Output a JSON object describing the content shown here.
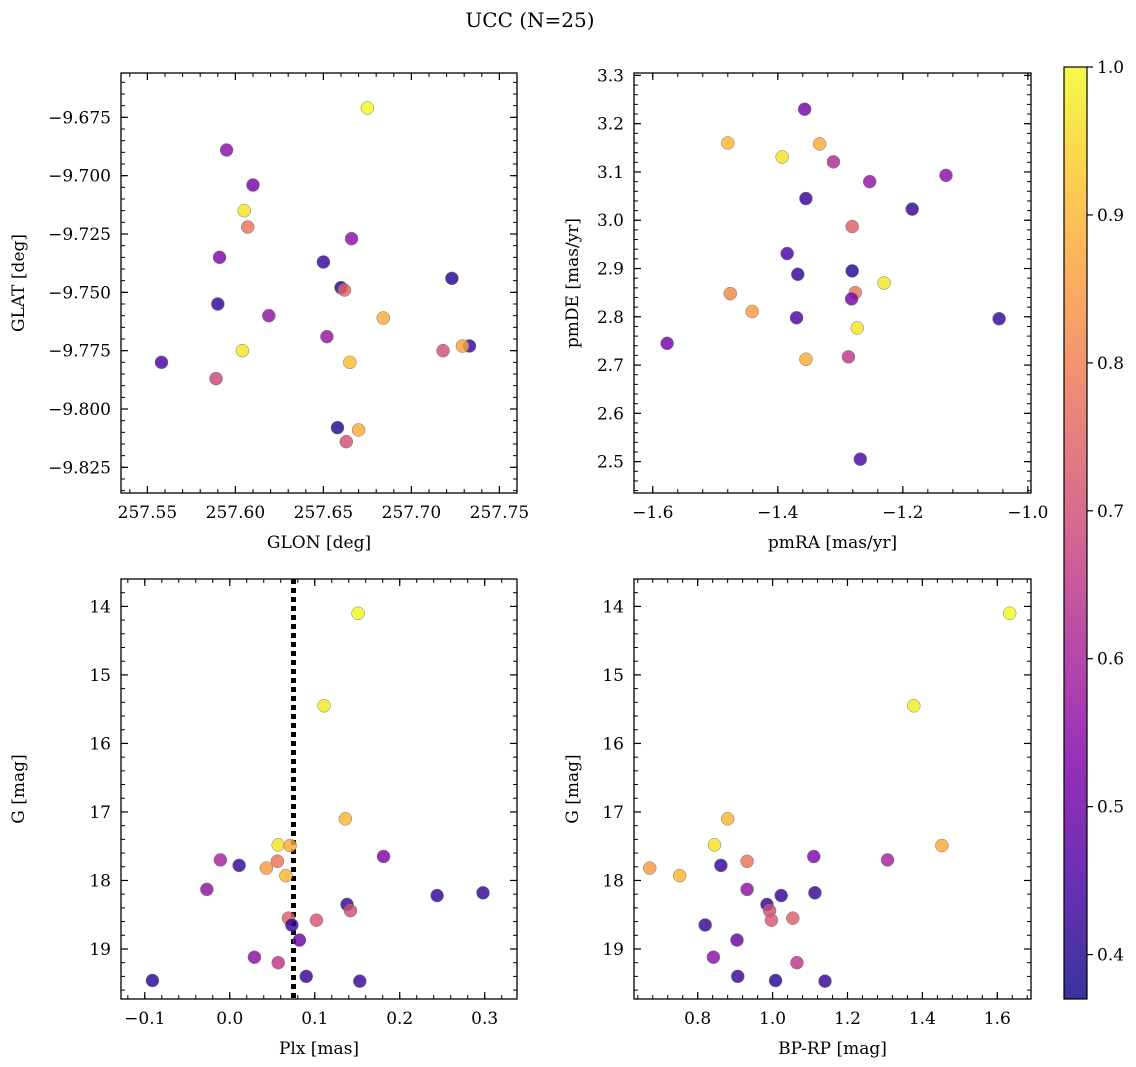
{
  "title": "UCC (N=25)",
  "colorbar": {
    "min": 0.37,
    "max": 1.0,
    "ticks": [
      0.4,
      0.5,
      0.6,
      0.7,
      0.8,
      0.9,
      1.0
    ],
    "tick_labels": [
      "0.4",
      "0.5",
      "0.6",
      "0.7",
      "0.8",
      "0.9",
      "1.0"
    ],
    "colormap": "plasma"
  },
  "chart_data": [
    {
      "type": "scatter",
      "id": "glon-glat",
      "xlabel": "GLON [deg]",
      "ylabel": "GLAT [deg]",
      "xlim": [
        257.535,
        257.76
      ],
      "ylim": [
        -9.836,
        -9.656
      ],
      "y_inverted": false,
      "xticks": [
        257.55,
        257.6,
        257.65,
        257.7,
        257.75
      ],
      "xtick_labels": [
        "257.55",
        "257.60",
        "257.65",
        "257.70",
        "257.75"
      ],
      "yticks": [
        -9.675,
        -9.7,
        -9.725,
        -9.75,
        -9.775,
        -9.8,
        -9.825
      ],
      "ytick_labels": [
        "−9.675",
        "−9.700",
        "−9.725",
        "−9.750",
        "−9.775",
        "−9.800",
        "−9.825"
      ],
      "points": [
        {
          "x": 257.675,
          "y": -9.671,
          "c": 1.0
        },
        {
          "x": 257.595,
          "y": -9.689,
          "c": 0.55
        },
        {
          "x": 257.61,
          "y": -9.704,
          "c": 0.52
        },
        {
          "x": 257.605,
          "y": -9.715,
          "c": 0.97
        },
        {
          "x": 257.607,
          "y": -9.722,
          "c": 0.78
        },
        {
          "x": 257.666,
          "y": -9.727,
          "c": 0.55
        },
        {
          "x": 257.591,
          "y": -9.735,
          "c": 0.53
        },
        {
          "x": 257.65,
          "y": -9.737,
          "c": 0.42
        },
        {
          "x": 257.723,
          "y": -9.744,
          "c": 0.4
        },
        {
          "x": 257.66,
          "y": -9.748,
          "c": 0.4
        },
        {
          "x": 257.662,
          "y": -9.749,
          "c": 0.75
        },
        {
          "x": 257.59,
          "y": -9.755,
          "c": 0.42
        },
        {
          "x": 257.619,
          "y": -9.76,
          "c": 0.56
        },
        {
          "x": 257.684,
          "y": -9.761,
          "c": 0.88
        },
        {
          "x": 257.652,
          "y": -9.769,
          "c": 0.57
        },
        {
          "x": 257.604,
          "y": -9.775,
          "c": 0.97
        },
        {
          "x": 257.733,
          "y": -9.773,
          "c": 0.42
        },
        {
          "x": 257.729,
          "y": -9.773,
          "c": 0.87
        },
        {
          "x": 257.718,
          "y": -9.775,
          "c": 0.7
        },
        {
          "x": 257.558,
          "y": -9.78,
          "c": 0.45
        },
        {
          "x": 257.665,
          "y": -9.78,
          "c": 0.91
        },
        {
          "x": 257.589,
          "y": -9.787,
          "c": 0.68
        },
        {
          "x": 257.658,
          "y": -9.808,
          "c": 0.4
        },
        {
          "x": 257.67,
          "y": -9.809,
          "c": 0.88
        },
        {
          "x": 257.663,
          "y": -9.814,
          "c": 0.7
        }
      ]
    },
    {
      "type": "scatter",
      "id": "pmra-pmde",
      "xlabel": "pmRA [mas/yr]",
      "ylabel": "pmDE [mas/yr]",
      "xlim": [
        -1.63,
        -0.995
      ],
      "ylim": [
        2.435,
        3.305
      ],
      "y_inverted": false,
      "xticks": [
        -1.6,
        -1.4,
        -1.2,
        -1.0
      ],
      "xtick_labels": [
        "−1.6",
        "−1.4",
        "−1.2",
        "−1.0"
      ],
      "yticks": [
        2.5,
        2.6,
        2.7,
        2.8,
        2.9,
        3.0,
        3.1,
        3.2,
        3.3
      ],
      "ytick_labels": [
        "2.5",
        "2.6",
        "2.7",
        "2.8",
        "2.9",
        "3.0",
        "3.1",
        "3.2",
        "3.3"
      ],
      "points": [
        {
          "x": -1.357,
          "y": 3.23,
          "c": 0.52
        },
        {
          "x": -1.48,
          "y": 3.16,
          "c": 0.9
        },
        {
          "x": -1.333,
          "y": 3.158,
          "c": 0.88
        },
        {
          "x": -1.393,
          "y": 3.131,
          "c": 0.97
        },
        {
          "x": -1.311,
          "y": 3.121,
          "c": 0.62
        },
        {
          "x": -1.131,
          "y": 3.093,
          "c": 0.55
        },
        {
          "x": -1.253,
          "y": 3.08,
          "c": 0.57
        },
        {
          "x": -1.355,
          "y": 3.045,
          "c": 0.42
        },
        {
          "x": -1.185,
          "y": 3.023,
          "c": 0.42
        },
        {
          "x": -1.281,
          "y": 2.987,
          "c": 0.74
        },
        {
          "x": -1.385,
          "y": 2.931,
          "c": 0.45
        },
        {
          "x": -1.281,
          "y": 2.895,
          "c": 0.4
        },
        {
          "x": -1.368,
          "y": 2.888,
          "c": 0.42
        },
        {
          "x": -1.23,
          "y": 2.87,
          "c": 0.97
        },
        {
          "x": -1.476,
          "y": 2.848,
          "c": 0.82
        },
        {
          "x": -1.276,
          "y": 2.85,
          "c": 0.78
        },
        {
          "x": -1.282,
          "y": 2.837,
          "c": 0.52
        },
        {
          "x": -1.441,
          "y": 2.811,
          "c": 0.85
        },
        {
          "x": -1.37,
          "y": 2.798,
          "c": 0.45
        },
        {
          "x": -1.046,
          "y": 2.796,
          "c": 0.42
        },
        {
          "x": -1.273,
          "y": 2.777,
          "c": 0.97
        },
        {
          "x": -1.577,
          "y": 2.745,
          "c": 0.52
        },
        {
          "x": -1.287,
          "y": 2.717,
          "c": 0.65
        },
        {
          "x": -1.355,
          "y": 2.712,
          "c": 0.88
        },
        {
          "x": -1.268,
          "y": 2.505,
          "c": 0.45
        }
      ]
    },
    {
      "type": "scatter",
      "id": "plx-g",
      "xlabel": "Plx [mas]",
      "ylabel": "G [mag]",
      "xlim": [
        -0.128,
        0.338
      ],
      "ylim": [
        13.6,
        19.73
      ],
      "y_inverted": true,
      "vline": {
        "x": 0.075,
        "style": "dotted"
      },
      "xticks": [
        -0.1,
        0.0,
        0.1,
        0.2,
        0.3
      ],
      "xtick_labels": [
        "−0.1",
        "0.0",
        "0.1",
        "0.2",
        "0.3"
      ],
      "yticks": [
        14,
        15,
        16,
        17,
        18,
        19
      ],
      "ytick_labels": [
        "14",
        "15",
        "16",
        "17",
        "18",
        "19"
      ],
      "points": [
        {
          "x": 0.151,
          "y": 14.1,
          "c": 1.0
        },
        {
          "x": 0.111,
          "y": 15.45,
          "c": 0.98
        },
        {
          "x": 0.136,
          "y": 17.1,
          "c": 0.9
        },
        {
          "x": 0.057,
          "y": 17.48,
          "c": 0.97
        },
        {
          "x": 0.071,
          "y": 17.49,
          "c": 0.88
        },
        {
          "x": 0.181,
          "y": 17.65,
          "c": 0.53
        },
        {
          "x": -0.011,
          "y": 17.7,
          "c": 0.6
        },
        {
          "x": 0.056,
          "y": 17.72,
          "c": 0.78
        },
        {
          "x": 0.011,
          "y": 17.78,
          "c": 0.42
        },
        {
          "x": 0.043,
          "y": 17.82,
          "c": 0.85
        },
        {
          "x": 0.066,
          "y": 17.93,
          "c": 0.9
        },
        {
          "x": -0.027,
          "y": 18.13,
          "c": 0.56
        },
        {
          "x": 0.298,
          "y": 18.18,
          "c": 0.42
        },
        {
          "x": 0.244,
          "y": 18.22,
          "c": 0.42
        },
        {
          "x": 0.138,
          "y": 18.35,
          "c": 0.42
        },
        {
          "x": 0.142,
          "y": 18.44,
          "c": 0.7
        },
        {
          "x": 0.069,
          "y": 18.55,
          "c": 0.74
        },
        {
          "x": 0.102,
          "y": 18.58,
          "c": 0.72
        },
        {
          "x": 0.073,
          "y": 18.65,
          "c": 0.42
        },
        {
          "x": 0.082,
          "y": 18.87,
          "c": 0.5
        },
        {
          "x": 0.029,
          "y": 19.12,
          "c": 0.55
        },
        {
          "x": 0.057,
          "y": 19.2,
          "c": 0.65
        },
        {
          "x": 0.09,
          "y": 19.4,
          "c": 0.42
        },
        {
          "x": -0.091,
          "y": 19.46,
          "c": 0.4
        },
        {
          "x": 0.153,
          "y": 19.47,
          "c": 0.42
        }
      ]
    },
    {
      "type": "scatter",
      "id": "bprp-g",
      "xlabel": "BP-RP [mag]",
      "ylabel": "G [mag]",
      "xlim": [
        0.63,
        1.69
      ],
      "ylim": [
        13.6,
        19.73
      ],
      "y_inverted": true,
      "xticks": [
        0.8,
        1.0,
        1.2,
        1.4,
        1.6
      ],
      "xtick_labels": [
        "0.8",
        "1.0",
        "1.2",
        "1.4",
        "1.6"
      ],
      "yticks": [
        14,
        15,
        16,
        17,
        18,
        19
      ],
      "ytick_labels": [
        "14",
        "15",
        "16",
        "17",
        "18",
        "19"
      ],
      "points": [
        {
          "x": 1.633,
          "y": 14.1,
          "c": 1.0
        },
        {
          "x": 1.377,
          "y": 15.45,
          "c": 0.98
        },
        {
          "x": 0.88,
          "y": 17.1,
          "c": 0.9
        },
        {
          "x": 0.845,
          "y": 17.48,
          "c": 0.97
        },
        {
          "x": 1.452,
          "y": 17.49,
          "c": 0.88
        },
        {
          "x": 1.11,
          "y": 17.65,
          "c": 0.53
        },
        {
          "x": 1.307,
          "y": 17.7,
          "c": 0.6
        },
        {
          "x": 0.932,
          "y": 17.72,
          "c": 0.78
        },
        {
          "x": 0.862,
          "y": 17.78,
          "c": 0.42
        },
        {
          "x": 0.672,
          "y": 17.82,
          "c": 0.85
        },
        {
          "x": 0.752,
          "y": 17.93,
          "c": 0.9
        },
        {
          "x": 0.932,
          "y": 18.13,
          "c": 0.56
        },
        {
          "x": 1.113,
          "y": 18.18,
          "c": 0.42
        },
        {
          "x": 1.023,
          "y": 18.22,
          "c": 0.42
        },
        {
          "x": 0.985,
          "y": 18.35,
          "c": 0.42
        },
        {
          "x": 0.992,
          "y": 18.44,
          "c": 0.7
        },
        {
          "x": 1.054,
          "y": 18.55,
          "c": 0.74
        },
        {
          "x": 0.997,
          "y": 18.58,
          "c": 0.72
        },
        {
          "x": 0.82,
          "y": 18.65,
          "c": 0.42
        },
        {
          "x": 0.905,
          "y": 18.87,
          "c": 0.5
        },
        {
          "x": 0.842,
          "y": 19.12,
          "c": 0.55
        },
        {
          "x": 1.065,
          "y": 19.2,
          "c": 0.65
        },
        {
          "x": 0.907,
          "y": 19.4,
          "c": 0.42
        },
        {
          "x": 1.008,
          "y": 19.46,
          "c": 0.4
        },
        {
          "x": 1.14,
          "y": 19.47,
          "c": 0.42
        }
      ]
    }
  ]
}
